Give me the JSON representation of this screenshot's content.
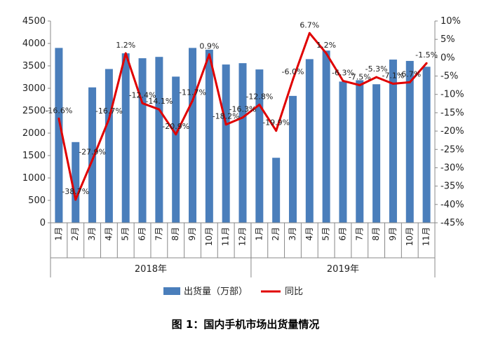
{
  "chart_data": {
    "type": "bar",
    "title": "",
    "caption": "图 1：国内手机市场出货量情况",
    "categories": [
      "1月",
      "2月",
      "3月",
      "4月",
      "5月",
      "6月",
      "7月",
      "8月",
      "9月",
      "10月",
      "11月",
      "12月",
      "1月",
      "2月",
      "3月",
      "4月",
      "5月",
      "6月",
      "7月",
      "8月",
      "9月",
      "10月",
      "11月"
    ],
    "groups": [
      {
        "label": "2018年",
        "count": 12
      },
      {
        "label": "2019年",
        "count": 11
      }
    ],
    "series": [
      {
        "name": "出货量（万部）",
        "type": "bar",
        "axis": "left",
        "color": "#4a7ebb",
        "values": [
          3900,
          1800,
          3020,
          3430,
          3780,
          3670,
          3700,
          3260,
          3900,
          3860,
          3530,
          3560,
          3420,
          1450,
          2830,
          3650,
          3840,
          3150,
          3180,
          3090,
          3640,
          3610,
          3480
        ]
      },
      {
        "name": "同比",
        "type": "line",
        "axis": "right",
        "color": "#e00000",
        "values": [
          -16.6,
          -38.7,
          -27.9,
          -16.7,
          1.2,
          -12.4,
          -14.1,
          -20.9,
          -11.7,
          0.9,
          -18.2,
          -16.3,
          -12.8,
          -19.9,
          -6.0,
          6.7,
          1.2,
          -6.3,
          -7.5,
          -5.3,
          -7.1,
          -6.7,
          -1.5
        ],
        "labels": [
          "-16.6%",
          "-38.7%",
          "-27.9%",
          "-16.7%",
          "1.2%",
          "-12.4%",
          "-14.1%",
          "-20.9%",
          "-11.7%",
          "0.9%",
          "-18.2%",
          "-16.3%",
          "-12.8%",
          "-19.9%",
          "-6.0%",
          "6.7%",
          "1.2%",
          "-6.3%",
          "-7.5%",
          "-5.3%",
          "-7.1%",
          "-6.7%",
          "-1.5%"
        ]
      }
    ],
    "y_left": {
      "min": 0,
      "max": 4500,
      "step": 500,
      "ticks": [
        "0",
        "500",
        "1000",
        "1500",
        "2000",
        "2500",
        "3000",
        "3500",
        "4000",
        "4500"
      ]
    },
    "y_right": {
      "min": -45,
      "max": 10,
      "step": 5,
      "ticks": [
        "-45%",
        "-40%",
        "-35%",
        "-30%",
        "-25%",
        "-20%",
        "-15%",
        "-10%",
        "-5%",
        "0%",
        "5%",
        "10%"
      ]
    },
    "legend_position": "bottom",
    "grid": false
  }
}
